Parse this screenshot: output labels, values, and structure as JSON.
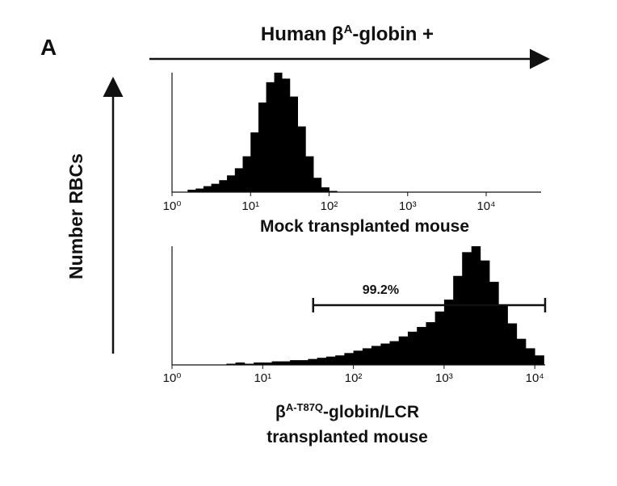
{
  "panel_label": "A",
  "header": {
    "prefix": "Human β",
    "sup": "A",
    "suffix": "-globin +"
  },
  "ylabel": "Number RBCs",
  "chart_data": [
    {
      "type": "histogram",
      "log_x": true,
      "color": "#000000",
      "title": {
        "line1": "Mock transplanted mouse"
      },
      "xlim": [
        1,
        50000
      ],
      "ylim": [
        0,
        100
      ],
      "xticks": [
        {
          "value": 1,
          "label": "10⁰"
        },
        {
          "value": 10,
          "label": "10¹"
        },
        {
          "value": 100,
          "label": "10²"
        },
        {
          "value": 1000,
          "label": "10³"
        },
        {
          "value": 10000,
          "label": "10⁴"
        }
      ],
      "bins": [
        1.58,
        2.0,
        2.51,
        3.16,
        3.98,
        5.01,
        6.31,
        7.94,
        10,
        12.6,
        15.8,
        20,
        25.1,
        31.6,
        39.8,
        50.1,
        63.1,
        79.4,
        100,
        126
      ],
      "values": [
        2,
        3,
        5,
        7,
        10,
        14,
        20,
        30,
        50,
        75,
        92,
        100,
        95,
        80,
        55,
        30,
        12,
        4,
        1
      ]
    },
    {
      "type": "histogram",
      "log_x": true,
      "color": "#000000",
      "title": {
        "prefix": "β",
        "sup": "A-T87Q",
        "suffix": "-globin/LCR",
        "line2": "transplanted mouse"
      },
      "xlim": [
        1,
        13000
      ],
      "ylim": [
        0,
        100
      ],
      "xticks": [
        {
          "value": 1,
          "label": "10⁰"
        },
        {
          "value": 10,
          "label": "10¹"
        },
        {
          "value": 100,
          "label": "10²"
        },
        {
          "value": 1000,
          "label": "10³"
        },
        {
          "value": 10000,
          "label": "10⁴"
        }
      ],
      "bins": [
        3.98,
        5.01,
        6.31,
        7.94,
        10,
        12.6,
        15.8,
        20,
        25.1,
        31.6,
        39.8,
        50.1,
        63.1,
        79.4,
        100,
        126,
        158,
        200,
        251,
        316,
        398,
        501,
        631,
        794,
        1000,
        1260,
        1580,
        2000,
        2510,
        3160,
        3980,
        5010,
        6310,
        7940,
        10000,
        12600
      ],
      "values": [
        1,
        2,
        1,
        2,
        2,
        3,
        3,
        4,
        4,
        5,
        6,
        7,
        8,
        10,
        12,
        14,
        16,
        18,
        20,
        24,
        28,
        32,
        36,
        45,
        55,
        75,
        95,
        100,
        88,
        70,
        50,
        35,
        22,
        14,
        8
      ],
      "gate": {
        "label": "99.2%",
        "range": [
          36,
          13000
        ]
      }
    }
  ]
}
